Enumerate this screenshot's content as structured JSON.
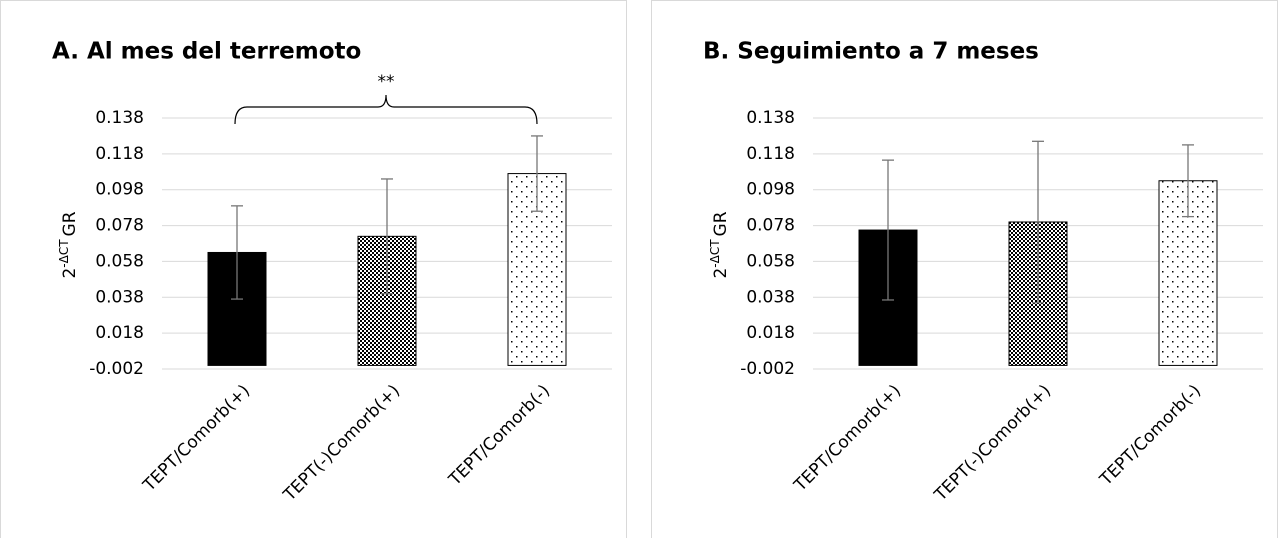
{
  "chart_data": [
    {
      "type": "bar",
      "title": "A. Al mes del terremoto",
      "ylabel": [
        "2",
        "-ΔCT",
        "GR"
      ],
      "categories": [
        "TEPT/Comorb(+)",
        "TEPT(-)Comorb(+)",
        "TEPT/Comorb(-)"
      ],
      "values": [
        0.063,
        0.072,
        0.107
      ],
      "errors": [
        0.026,
        0.032,
        0.021
      ],
      "bar_styles": [
        "solid",
        "crosshatch",
        "dots"
      ],
      "ylim": [
        -0.002,
        0.138
      ],
      "yticks": [
        -0.002,
        0.018,
        0.038,
        0.058,
        0.078,
        0.098,
        0.118,
        0.138
      ],
      "grid": true,
      "annotation": "**"
    },
    {
      "type": "bar",
      "title": "B. Seguimiento a 7 meses",
      "ylabel": [
        "2",
        "-ΔCT",
        "GR"
      ],
      "categories": [
        "TEPT/Comorb(+)",
        "TEPT(-)Comorb(+)",
        "TEPT/Comorb(-)"
      ],
      "values": [
        0.0755,
        0.08,
        0.103
      ],
      "errors": [
        0.039,
        0.045,
        0.02
      ],
      "bar_styles": [
        "solid",
        "crosshatch",
        "dots"
      ],
      "ylim": [
        -0.002,
        0.138
      ],
      "yticks": [
        -0.002,
        0.018,
        0.038,
        0.058,
        0.078,
        0.098,
        0.118,
        0.138
      ],
      "grid": true
    }
  ]
}
